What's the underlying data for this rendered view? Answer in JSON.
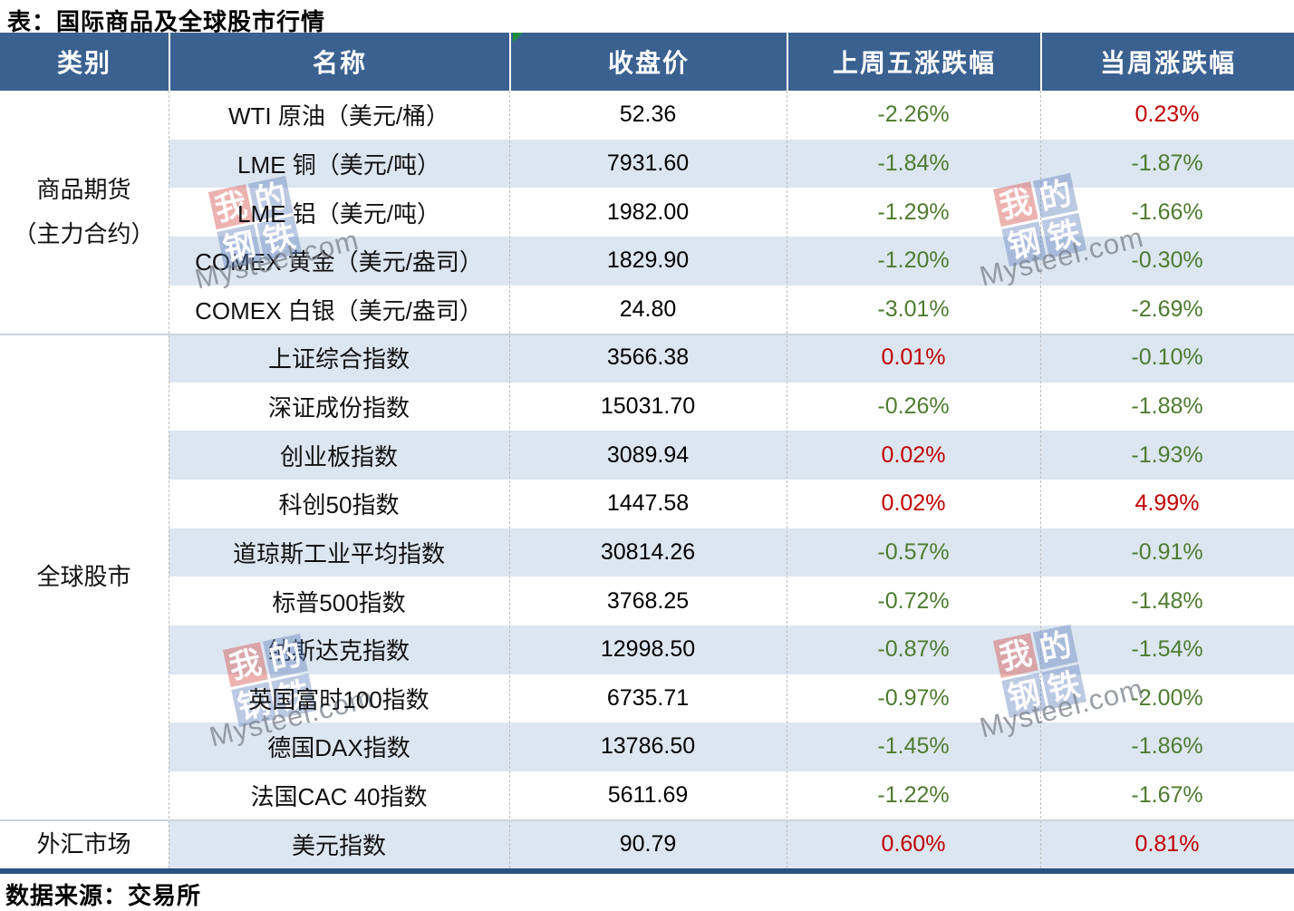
{
  "title": "表：国际商品及全球股市行情",
  "footer": {
    "source": "数据来源：交易所"
  },
  "colors": {
    "header_bg": "#3A6190",
    "stripe": "#DCE6F1",
    "up_red": "#C00000",
    "down_green": "#4E7B2F",
    "bottom_border": "#2B5284",
    "flag_green": "#1E8E3E"
  },
  "watermark": {
    "chars": [
      "我",
      "的",
      "钢",
      "铁"
    ],
    "text": "Mysteel.com"
  },
  "table": {
    "headers": [
      "类别",
      "名称",
      "收盘价",
      "上周五涨跌幅",
      "当周涨跌幅"
    ],
    "groups": [
      {
        "line1": "商品期货",
        "line2": "（主力合约）"
      },
      {
        "label": "全球股市"
      },
      {
        "label": "外汇市场"
      }
    ],
    "rows": [
      {
        "name": "WTI 原油（美元/桶）",
        "close": "52.36",
        "fri": "-2.26%",
        "fri_dir": "down",
        "week": "0.23%",
        "week_dir": "up"
      },
      {
        "name": "LME 铜（美元/吨）",
        "close": "7931.60",
        "fri": "-1.84%",
        "fri_dir": "down",
        "week": "-1.87%",
        "week_dir": "down"
      },
      {
        "name": "LME 铝（美元/吨）",
        "close": "1982.00",
        "fri": "-1.29%",
        "fri_dir": "down",
        "week": "-1.66%",
        "week_dir": "down"
      },
      {
        "name": "COMEX 黄金（美元/盎司）",
        "close": "1829.90",
        "fri": "-1.20%",
        "fri_dir": "down",
        "week": "-0.30%",
        "week_dir": "down"
      },
      {
        "name": "COMEX 白银（美元/盎司）",
        "close": "24.80",
        "fri": "-3.01%",
        "fri_dir": "down",
        "week": "-2.69%",
        "week_dir": "down"
      },
      {
        "name": "上证综合指数",
        "close": "3566.38",
        "fri": "0.01%",
        "fri_dir": "up",
        "week": "-0.10%",
        "week_dir": "down"
      },
      {
        "name": "深证成份指数",
        "close": "15031.70",
        "fri": "-0.26%",
        "fri_dir": "down",
        "week": "-1.88%",
        "week_dir": "down"
      },
      {
        "name": "创业板指数",
        "close": "3089.94",
        "fri": "0.02%",
        "fri_dir": "up",
        "week": "-1.93%",
        "week_dir": "down"
      },
      {
        "name": "科创50指数",
        "close": "1447.58",
        "fri": "0.02%",
        "fri_dir": "up",
        "week": "4.99%",
        "week_dir": "up"
      },
      {
        "name": "道琼斯工业平均指数",
        "close": "30814.26",
        "fri": "-0.57%",
        "fri_dir": "down",
        "week": "-0.91%",
        "week_dir": "down"
      },
      {
        "name": "标普500指数",
        "close": "3768.25",
        "fri": "-0.72%",
        "fri_dir": "down",
        "week": "-1.48%",
        "week_dir": "down"
      },
      {
        "name": "纳斯达克指数",
        "close": "12998.50",
        "fri": "-0.87%",
        "fri_dir": "down",
        "week": "-1.54%",
        "week_dir": "down"
      },
      {
        "name": "英国富时100指数",
        "close": "6735.71",
        "fri": "-0.97%",
        "fri_dir": "down",
        "week": "-2.00%",
        "week_dir": "down"
      },
      {
        "name": "德国DAX指数",
        "close": "13786.50",
        "fri": "-1.45%",
        "fri_dir": "down",
        "week": "-1.86%",
        "week_dir": "down"
      },
      {
        "name": "法国CAC 40指数",
        "close": "5611.69",
        "fri": "-1.22%",
        "fri_dir": "down",
        "week": "-1.67%",
        "week_dir": "down"
      },
      {
        "name": "美元指数",
        "close": "90.79",
        "fri": "0.60%",
        "fri_dir": "up",
        "week": "0.81%",
        "week_dir": "up"
      }
    ]
  },
  "chart_data": {
    "type": "table",
    "title": "表：国际商品及全球股市行情",
    "columns": [
      "类别",
      "名称",
      "收盘价",
      "上周五涨跌幅",
      "当周涨跌幅"
    ],
    "rows": [
      [
        "商品期货（主力合约）",
        "WTI 原油（美元/桶）",
        52.36,
        "-2.26%",
        "0.23%"
      ],
      [
        "商品期货（主力合约）",
        "LME 铜（美元/吨）",
        7931.6,
        "-1.84%",
        "-1.87%"
      ],
      [
        "商品期货（主力合约）",
        "LME 铝（美元/吨）",
        1982.0,
        "-1.29%",
        "-1.66%"
      ],
      [
        "商品期货（主力合约）",
        "COMEX 黄金（美元/盎司）",
        1829.9,
        "-1.20%",
        "-0.30%"
      ],
      [
        "商品期货（主力合约）",
        "COMEX 白银（美元/盎司）",
        24.8,
        "-3.01%",
        "-2.69%"
      ],
      [
        "全球股市",
        "上证综合指数",
        3566.38,
        "0.01%",
        "-0.10%"
      ],
      [
        "全球股市",
        "深证成份指数",
        15031.7,
        "-0.26%",
        "-1.88%"
      ],
      [
        "全球股市",
        "创业板指数",
        3089.94,
        "0.02%",
        "-1.93%"
      ],
      [
        "全球股市",
        "科创50指数",
        1447.58,
        "0.02%",
        "4.99%"
      ],
      [
        "全球股市",
        "道琼斯工业平均指数",
        30814.26,
        "-0.57%",
        "-0.91%"
      ],
      [
        "全球股市",
        "标普500指数",
        3768.25,
        "-0.72%",
        "-1.48%"
      ],
      [
        "全球股市",
        "纳斯达克指数",
        12998.5,
        "-0.87%",
        "-1.54%"
      ],
      [
        "全球股市",
        "英国富时100指数",
        6735.71,
        "-0.97%",
        "-2.00%"
      ],
      [
        "全球股市",
        "德国DAX指数",
        13786.5,
        "-1.45%",
        "-1.86%"
      ],
      [
        "全球股市",
        "法国CAC 40指数",
        5611.69,
        "-1.22%",
        "-1.67%"
      ],
      [
        "外汇市场",
        "美元指数",
        90.79,
        "0.60%",
        "0.81%"
      ]
    ],
    "value_color_rule": "负值为绿色(#4E7B2F)，正值为红色(#C00000)",
    "source": "数据来源：交易所"
  }
}
